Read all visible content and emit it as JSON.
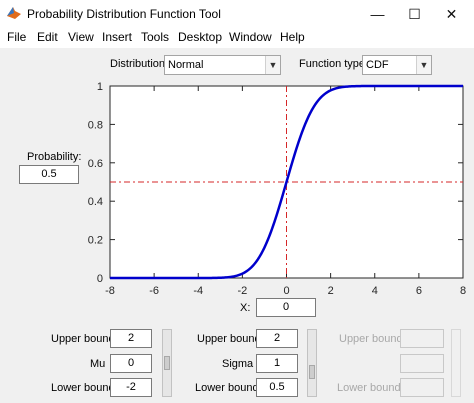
{
  "window": {
    "title": "Probability Distribution Function Tool",
    "controls": {
      "minimize": "—",
      "maximize": "☐",
      "close": "✕"
    }
  },
  "menu": [
    "File",
    "Edit",
    "View",
    "Insert",
    "Tools",
    "Desktop",
    "Window",
    "Help"
  ],
  "distribution": {
    "label": "Distribution:",
    "value": "Normal"
  },
  "function_type": {
    "label": "Function type:",
    "value": "CDF"
  },
  "probability": {
    "label": "Probability:",
    "value": "0.5"
  },
  "x_input": {
    "label": "X:",
    "value": "0"
  },
  "params": [
    {
      "name": "Mu",
      "upper_label": "Upper bound",
      "upper": "2",
      "value": "0",
      "lower_label": "Lower bound",
      "lower": "-2",
      "enabled": true,
      "slider_level": 0.5
    },
    {
      "name": "Sigma",
      "upper_label": "Upper bound",
      "upper": "2",
      "value": "1",
      "lower_label": "Lower bound",
      "lower": "0.5",
      "enabled": true,
      "slider_level": 0.33
    },
    {
      "name": "",
      "upper_label": "Upper bound",
      "upper": "",
      "value": "",
      "lower_label": "Lower bound",
      "lower": "",
      "enabled": false,
      "slider_level": null
    }
  ],
  "chart_data": {
    "type": "line",
    "title": "",
    "xlabel": "",
    "ylabel": "",
    "xlim": [
      -8,
      8
    ],
    "ylim": [
      0,
      1
    ],
    "x_ticks": [
      -8,
      -6,
      -4,
      -2,
      0,
      2,
      4,
      6,
      8
    ],
    "y_ticks": [
      0,
      0.2,
      0.4,
      0.6,
      0.8,
      1
    ],
    "y_tick_labels": [
      "0",
      "0.2",
      "0.4",
      "0.6",
      "0.8",
      "1"
    ],
    "curve": {
      "function": "normal_cdf",
      "mu": 0,
      "sigma": 1,
      "color": "#0000cc"
    },
    "crosshair": {
      "x": 0,
      "y": 0.5,
      "color": "#d62728",
      "style": "dash-dot"
    },
    "grid": false
  },
  "colors": {
    "curve": "#0000cc",
    "crosshair": "#d62728",
    "background": "#f0f0f0"
  }
}
